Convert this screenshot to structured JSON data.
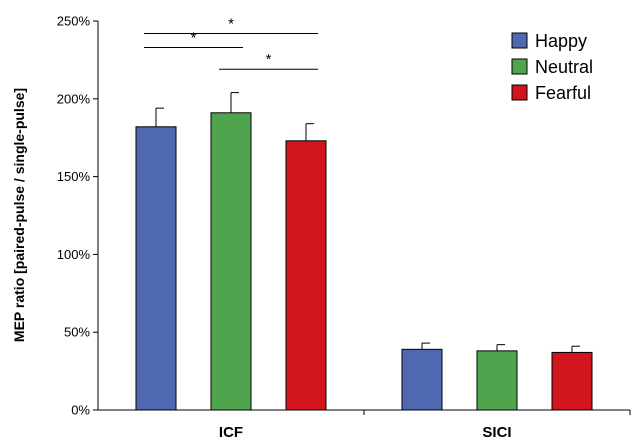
{
  "chart_data": {
    "type": "bar",
    "title": "",
    "xlabel": "",
    "ylabel": "MEP ratio [paired-pulse / single-pulse]",
    "ylim": [
      0,
      250
    ],
    "yticks": [
      0,
      50,
      100,
      150,
      200,
      250
    ],
    "ytick_labels": [
      "0%",
      "50%",
      "100%",
      "150%",
      "200%",
      "250%"
    ],
    "categories": [
      "ICF",
      "SICI"
    ],
    "series": [
      {
        "name": "Happy",
        "color": "#4f68b0",
        "values": [
          182,
          39
        ],
        "errors": [
          12,
          4
        ]
      },
      {
        "name": "Neutral",
        "color": "#4ea54d",
        "values": [
          191,
          38
        ],
        "errors": [
          13,
          4
        ]
      },
      {
        "name": "Fearful",
        "color": "#d0161c",
        "values": [
          173,
          37
        ],
        "errors": [
          11,
          4
        ]
      }
    ],
    "legend_position": "top-right",
    "significance": [
      {
        "category": "ICF",
        "from": "Happy",
        "to": "Fearful",
        "label": "*"
      },
      {
        "category": "ICF",
        "from": "Happy",
        "to": "Neutral",
        "label": "*"
      },
      {
        "category": "ICF",
        "from": "Neutral",
        "to": "Fearful",
        "label": "*"
      }
    ]
  }
}
